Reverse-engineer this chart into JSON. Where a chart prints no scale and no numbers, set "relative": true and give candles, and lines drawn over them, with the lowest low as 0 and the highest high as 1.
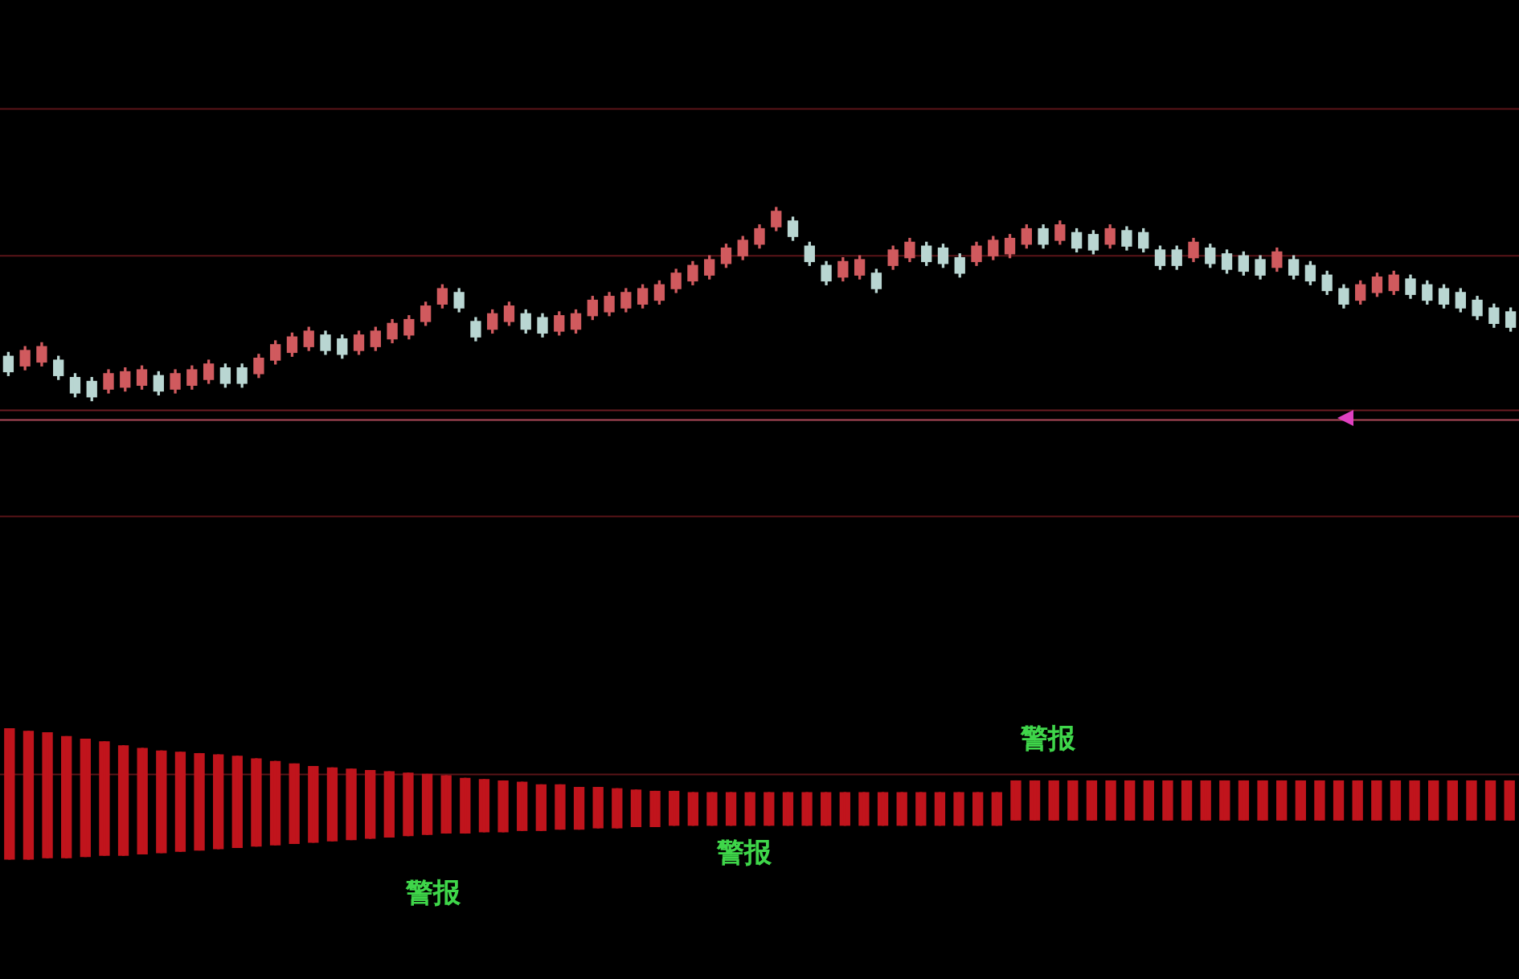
{
  "chart_data": [
    {
      "type": "candlestick",
      "relative": true,
      "categories": [
        null,
        null,
        null,
        null,
        null,
        null,
        null,
        null,
        null,
        null,
        null,
        null,
        null,
        null,
        null,
        null,
        null,
        null,
        null,
        null,
        null,
        null,
        null,
        null,
        null,
        null,
        null,
        null,
        null,
        null,
        null,
        null,
        null,
        null,
        null,
        null,
        null,
        null,
        null,
        null,
        null,
        null,
        null,
        null,
        null,
        null,
        null,
        null,
        null,
        null,
        null,
        null,
        null,
        null,
        null,
        null,
        null,
        null,
        null,
        null,
        null,
        null,
        null,
        null,
        null,
        null,
        null,
        null,
        null,
        null,
        null,
        null,
        null,
        null,
        null,
        null,
        null,
        null,
        null,
        null,
        null,
        null,
        null,
        null,
        null,
        null,
        null,
        null,
        null,
        null,
        null
      ],
      "ohlc": [
        [
          0.23,
          0.25,
          0.13,
          0.15
        ],
        [
          0.18,
          0.28,
          0.16,
          0.26
        ],
        [
          0.2,
          0.3,
          0.18,
          0.28
        ],
        [
          0.21,
          0.23,
          0.11,
          0.13
        ],
        [
          0.12,
          0.14,
          0.02,
          0.04
        ],
        [
          0.1,
          0.12,
          0,
          0.02
        ],
        [
          0.06,
          0.16,
          0.04,
          0.14
        ],
        [
          0.07,
          0.17,
          0.05,
          0.15
        ],
        [
          0.08,
          0.18,
          0.06,
          0.16
        ],
        [
          0.13,
          0.15,
          0.03,
          0.05
        ],
        [
          0.06,
          0.16,
          0.04,
          0.14
        ],
        [
          0.08,
          0.18,
          0.06,
          0.16
        ],
        [
          0.11,
          0.21,
          0.09,
          0.19
        ],
        [
          0.17,
          0.19,
          0.07,
          0.09
        ],
        [
          0.17,
          0.19,
          0.07,
          0.09
        ],
        [
          0.14,
          0.24,
          0.12,
          0.22
        ],
        [
          0.21,
          0.31,
          0.19,
          0.29
        ],
        [
          0.25,
          0.35,
          0.23,
          0.33
        ],
        [
          0.28,
          0.38,
          0.26,
          0.36
        ],
        [
          0.34,
          0.36,
          0.24,
          0.26
        ],
        [
          0.32,
          0.34,
          0.22,
          0.24
        ],
        [
          0.26,
          0.36,
          0.24,
          0.34
        ],
        [
          0.28,
          0.38,
          0.26,
          0.36
        ],
        [
          0.32,
          0.42,
          0.3,
          0.4
        ],
        [
          0.34,
          0.44,
          0.32,
          0.42
        ],
        [
          0.41,
          0.51,
          0.39,
          0.49
        ],
        [
          0.5,
          0.6,
          0.48,
          0.58
        ],
        [
          0.56,
          0.58,
          0.46,
          0.48
        ],
        [
          0.41,
          0.43,
          0.31,
          0.33
        ],
        [
          0.37,
          0.47,
          0.35,
          0.45
        ],
        [
          0.41,
          0.51,
          0.39,
          0.49
        ],
        [
          0.45,
          0.47,
          0.35,
          0.37
        ],
        [
          0.43,
          0.45,
          0.33,
          0.35
        ],
        [
          0.36,
          0.46,
          0.34,
          0.44
        ],
        [
          0.37,
          0.47,
          0.35,
          0.45
        ],
        [
          0.44,
          0.54,
          0.42,
          0.52
        ],
        [
          0.46,
          0.56,
          0.44,
          0.54
        ],
        [
          0.48,
          0.58,
          0.46,
          0.56
        ],
        [
          0.5,
          0.6,
          0.48,
          0.58
        ],
        [
          0.52,
          0.62,
          0.5,
          0.6
        ],
        [
          0.58,
          0.68,
          0.56,
          0.66
        ],
        [
          0.62,
          0.72,
          0.6,
          0.7
        ],
        [
          0.65,
          0.75,
          0.63,
          0.73
        ],
        [
          0.71,
          0.81,
          0.69,
          0.79
        ],
        [
          0.75,
          0.85,
          0.73,
          0.83
        ],
        [
          0.81,
          0.91,
          0.79,
          0.89
        ],
        [
          0.9,
          1,
          0.88,
          0.98
        ],
        [
          0.93,
          0.95,
          0.83,
          0.85
        ],
        [
          0.8,
          0.82,
          0.7,
          0.72
        ],
        [
          0.7,
          0.72,
          0.6,
          0.62
        ],
        [
          0.64,
          0.74,
          0.62,
          0.72
        ],
        [
          0.65,
          0.75,
          0.63,
          0.73
        ],
        [
          0.66,
          0.68,
          0.56,
          0.58
        ],
        [
          0.7,
          0.8,
          0.68,
          0.78
        ],
        [
          0.74,
          0.84,
          0.72,
          0.82
        ],
        [
          0.8,
          0.82,
          0.7,
          0.72
        ],
        [
          0.79,
          0.81,
          0.69,
          0.71
        ],
        [
          0.74,
          0.76,
          0.64,
          0.66
        ],
        [
          0.72,
          0.82,
          0.7,
          0.8
        ],
        [
          0.75,
          0.85,
          0.73,
          0.83
        ],
        [
          0.76,
          0.86,
          0.74,
          0.84
        ],
        [
          0.81,
          0.91,
          0.79,
          0.89
        ],
        [
          0.89,
          0.91,
          0.79,
          0.81
        ],
        [
          0.83,
          0.93,
          0.81,
          0.91
        ],
        [
          0.87,
          0.89,
          0.77,
          0.79
        ],
        [
          0.86,
          0.88,
          0.76,
          0.78
        ],
        [
          0.81,
          0.91,
          0.79,
          0.89
        ],
        [
          0.88,
          0.9,
          0.78,
          0.8
        ],
        [
          0.87,
          0.89,
          0.77,
          0.79
        ],
        [
          0.78,
          0.8,
          0.68,
          0.7
        ],
        [
          0.78,
          0.8,
          0.68,
          0.7
        ],
        [
          0.74,
          0.84,
          0.72,
          0.82
        ],
        [
          0.79,
          0.81,
          0.69,
          0.71
        ],
        [
          0.76,
          0.78,
          0.66,
          0.68
        ],
        [
          0.75,
          0.77,
          0.65,
          0.67
        ],
        [
          0.73,
          0.75,
          0.63,
          0.65
        ],
        [
          0.69,
          0.79,
          0.67,
          0.77
        ],
        [
          0.73,
          0.75,
          0.63,
          0.65
        ],
        [
          0.7,
          0.72,
          0.6,
          0.62
        ],
        [
          0.65,
          0.67,
          0.55,
          0.57
        ],
        [
          0.58,
          0.6,
          0.48,
          0.5
        ],
        [
          0.52,
          0.62,
          0.5,
          0.6
        ],
        [
          0.56,
          0.66,
          0.54,
          0.64
        ],
        [
          0.57,
          0.67,
          0.55,
          0.65
        ],
        [
          0.63,
          0.65,
          0.53,
          0.55
        ],
        [
          0.6,
          0.62,
          0.5,
          0.52
        ],
        [
          0.58,
          0.6,
          0.48,
          0.5
        ],
        [
          0.56,
          0.58,
          0.46,
          0.48
        ],
        [
          0.52,
          0.54,
          0.42,
          0.44
        ],
        [
          0.48,
          0.5,
          0.38,
          0.4
        ],
        [
          0.46,
          0.48,
          0.36,
          0.38
        ]
      ],
      "colors": [
        "#b9d6d2",
        "#d05a5e",
        "#d05a5e",
        "#b9d6d2",
        "#b9d6d2",
        "#b9d6d2",
        "#d05a5e",
        "#d05a5e",
        "#d05a5e",
        "#b9d6d2",
        "#d05a5e",
        "#d05a5e",
        "#d05a5e",
        "#b9d6d2",
        "#b9d6d2",
        "#d05a5e",
        "#d05a5e",
        "#d05a5e",
        "#d05a5e",
        "#b9d6d2",
        "#b9d6d2",
        "#d05a5e",
        "#d05a5e",
        "#d05a5e",
        "#d05a5e",
        "#d05a5e",
        "#d05a5e",
        "#b9d6d2",
        "#b9d6d2",
        "#d05a5e",
        "#d05a5e",
        "#b9d6d2",
        "#b9d6d2",
        "#d05a5e",
        "#d05a5e",
        "#d05a5e",
        "#d05a5e",
        "#d05a5e",
        "#d05a5e",
        "#d05a5e",
        "#d05a5e",
        "#d05a5e",
        "#d05a5e",
        "#d05a5e",
        "#d05a5e",
        "#d05a5e",
        "#d05a5e",
        "#b9d6d2",
        "#b9d6d2",
        "#b9d6d2",
        "#d05a5e",
        "#d05a5e",
        "#b9d6d2",
        "#d05a5e",
        "#d05a5e",
        "#b9d6d2",
        "#b9d6d2",
        "#b9d6d2",
        "#d05a5e",
        "#d05a5e",
        "#d05a5e",
        "#d05a5e",
        "#b9d6d2",
        "#d05a5e",
        "#b9d6d2",
        "#b9d6d2",
        "#d05a5e",
        "#b9d6d2",
        "#b9d6d2",
        "#b9d6d2",
        "#b9d6d2",
        "#d05a5e",
        "#b9d6d2",
        "#b9d6d2",
        "#b9d6d2",
        "#b9d6d2",
        "#d05a5e",
        "#b9d6d2",
        "#b9d6d2",
        "#b9d6d2",
        "#b9d6d2",
        "#d05a5e",
        "#d05a5e",
        "#d05a5e",
        "#b9d6d2",
        "#b9d6d2",
        "#b9d6d2",
        "#b9d6d2",
        "#b9d6d2",
        "#b9d6d2",
        "#b9d6d2"
      ],
      "ref_lines": [
        {
          "axis": "y",
          "value": 1.51,
          "color": "#5a1418"
        },
        {
          "axis": "y",
          "value": 0.75,
          "color": "#5a1418"
        },
        {
          "axis": "y",
          "value": -0.05,
          "color": "#6a1c22"
        },
        {
          "axis": "y",
          "value": -0.1,
          "color": "#b04a5a"
        }
      ]
    },
    {
      "type": "candlestick",
      "relative": true,
      "categories": [
        null,
        null,
        null,
        null,
        null,
        null,
        null,
        null,
        null,
        null,
        null,
        null,
        null,
        null,
        null,
        null,
        null,
        null,
        null,
        null,
        null,
        null,
        null,
        null,
        null,
        null,
        null,
        null,
        null,
        null,
        null,
        null,
        null,
        null,
        null,
        null,
        null,
        null,
        null,
        null,
        null,
        null,
        null,
        null,
        null,
        null,
        null,
        null,
        null,
        null,
        null,
        null,
        null,
        null,
        null,
        null,
        null,
        null,
        null,
        null,
        null,
        null,
        null,
        null,
        null,
        null,
        null,
        null,
        null,
        null,
        null,
        null,
        null,
        null,
        null,
        null,
        null,
        null,
        null,
        null
      ],
      "ohlc": [
        [
          0,
          1,
          0,
          1
        ],
        [
          0,
          0.98,
          0,
          0.98
        ],
        [
          0.01,
          0.97,
          0.01,
          0.97
        ],
        [
          0.01,
          0.94,
          0.01,
          0.94
        ],
        [
          0.02,
          0.92,
          0.02,
          0.92
        ],
        [
          0.03,
          0.9,
          0.03,
          0.9
        ],
        [
          0.03,
          0.87,
          0.03,
          0.87
        ],
        [
          0.04,
          0.85,
          0.04,
          0.85
        ],
        [
          0.05,
          0.83,
          0.05,
          0.83
        ],
        [
          0.06,
          0.82,
          0.06,
          0.82
        ],
        [
          0.07,
          0.81,
          0.07,
          0.81
        ],
        [
          0.08,
          0.8,
          0.08,
          0.8
        ],
        [
          0.09,
          0.79,
          0.09,
          0.79
        ],
        [
          0.1,
          0.77,
          0.1,
          0.77
        ],
        [
          0.11,
          0.75,
          0.11,
          0.75
        ],
        [
          0.12,
          0.73,
          0.12,
          0.73
        ],
        [
          0.13,
          0.71,
          0.13,
          0.71
        ],
        [
          0.14,
          0.7,
          0.14,
          0.7
        ],
        [
          0.15,
          0.69,
          0.15,
          0.69
        ],
        [
          0.16,
          0.68,
          0.16,
          0.68
        ],
        [
          0.17,
          0.67,
          0.17,
          0.67
        ],
        [
          0.18,
          0.66,
          0.18,
          0.66
        ],
        [
          0.19,
          0.65,
          0.19,
          0.65
        ],
        [
          0.2,
          0.64,
          0.2,
          0.64
        ],
        [
          0.2,
          0.62,
          0.2,
          0.62
        ],
        [
          0.21,
          0.61,
          0.21,
          0.61
        ],
        [
          0.21,
          0.6,
          0.21,
          0.6
        ],
        [
          0.22,
          0.59,
          0.22,
          0.59
        ],
        [
          0.22,
          0.57,
          0.22,
          0.57
        ],
        [
          0.23,
          0.57,
          0.23,
          0.57
        ],
        [
          0.23,
          0.55,
          0.23,
          0.55
        ],
        [
          0.24,
          0.55,
          0.24,
          0.55
        ],
        [
          0.24,
          0.54,
          0.24,
          0.54
        ],
        [
          0.25,
          0.53,
          0.25,
          0.53
        ],
        [
          0.25,
          0.52,
          0.25,
          0.52
        ],
        [
          0.26,
          0.52,
          0.26,
          0.52
        ],
        [
          0.26,
          0.51,
          0.26,
          0.51
        ],
        [
          0.26,
          0.51,
          0.26,
          0.51
        ],
        [
          0.26,
          0.51,
          0.26,
          0.51
        ],
        [
          0.26,
          0.51,
          0.26,
          0.51
        ],
        [
          0.26,
          0.51,
          0.26,
          0.51
        ],
        [
          0.26,
          0.51,
          0.26,
          0.51
        ],
        [
          0.26,
          0.51,
          0.26,
          0.51
        ],
        [
          0.26,
          0.51,
          0.26,
          0.51
        ],
        [
          0.26,
          0.51,
          0.26,
          0.51
        ],
        [
          0.26,
          0.51,
          0.26,
          0.51
        ],
        [
          0.26,
          0.51,
          0.26,
          0.51
        ],
        [
          0.26,
          0.51,
          0.26,
          0.51
        ],
        [
          0.26,
          0.51,
          0.26,
          0.51
        ],
        [
          0.26,
          0.51,
          0.26,
          0.51
        ],
        [
          0.26,
          0.51,
          0.26,
          0.51
        ],
        [
          0.26,
          0.51,
          0.26,
          0.51
        ],
        [
          0.26,
          0.51,
          0.26,
          0.51
        ],
        [
          0.3,
          0.6,
          0.3,
          0.6
        ],
        [
          0.3,
          0.6,
          0.3,
          0.6
        ],
        [
          0.3,
          0.6,
          0.3,
          0.6
        ],
        [
          0.3,
          0.6,
          0.3,
          0.6
        ],
        [
          0.3,
          0.6,
          0.3,
          0.6
        ],
        [
          0.3,
          0.6,
          0.3,
          0.6
        ],
        [
          0.3,
          0.6,
          0.3,
          0.6
        ],
        [
          0.3,
          0.6,
          0.3,
          0.6
        ],
        [
          0.3,
          0.6,
          0.3,
          0.6
        ],
        [
          0.3,
          0.6,
          0.3,
          0.6
        ],
        [
          0.3,
          0.6,
          0.3,
          0.6
        ],
        [
          0.3,
          0.6,
          0.3,
          0.6
        ],
        [
          0.3,
          0.6,
          0.3,
          0.6
        ],
        [
          0.3,
          0.6,
          0.3,
          0.6
        ],
        [
          0.3,
          0.6,
          0.3,
          0.6
        ],
        [
          0.3,
          0.6,
          0.3,
          0.6
        ],
        [
          0.3,
          0.6,
          0.3,
          0.6
        ],
        [
          0.3,
          0.6,
          0.3,
          0.6
        ],
        [
          0.3,
          0.6,
          0.3,
          0.6
        ],
        [
          0.3,
          0.6,
          0.3,
          0.6
        ],
        [
          0.3,
          0.6,
          0.3,
          0.6
        ],
        [
          0.3,
          0.6,
          0.3,
          0.6
        ],
        [
          0.3,
          0.6,
          0.3,
          0.6
        ],
        [
          0.3,
          0.6,
          0.3,
          0.6
        ],
        [
          0.3,
          0.6,
          0.3,
          0.6
        ],
        [
          0.3,
          0.6,
          0.3,
          0.6
        ],
        [
          0.3,
          0.6,
          0.3,
          0.6
        ]
      ],
      "color": "#c0141c",
      "ref_lines": [
        {
          "axis": "y",
          "value": 2.63,
          "color": "#5a1418"
        },
        {
          "axis": "y",
          "value": 0.65,
          "color": "#5a1418"
        }
      ],
      "annotations": [
        "警报",
        "警报",
        "警报"
      ]
    }
  ]
}
